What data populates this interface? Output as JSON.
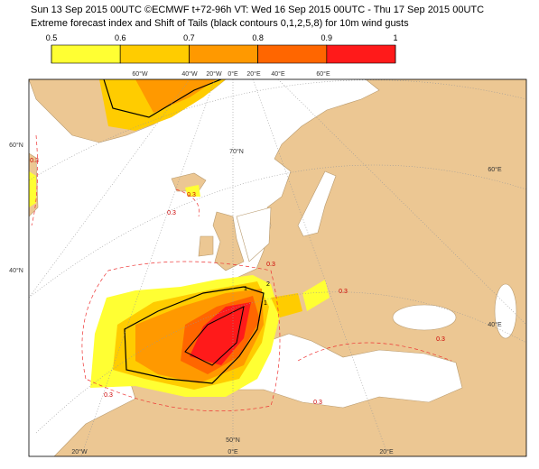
{
  "map": {
    "title_lines": [
      "Sun 13 Sep 2015 00UTC ©ECMWF t+72-96h  VT: Wed 16 Sep 2015 00UTC - Thu 17 Sep 2015 00UTC",
      "Extreme forecast index and Shift of Tails (black contours 0,1,2,5,8) for 10m wind gusts"
    ],
    "colorbar": {
      "ticks": [
        0.5,
        0.6,
        0.7,
        0.8,
        0.9,
        1
      ],
      "colors": [
        "#ffff33",
        "#ffcc00",
        "#ff9900",
        "#ff6600",
        "#ff1a1a"
      ]
    },
    "grid_labels": [
      "60°W",
      "40°W",
      "20°W",
      "0°E",
      "20°E",
      "40°E",
      "60°E",
      "60°N",
      "40°N",
      "60°E",
      "40°E",
      "70°N",
      "50°N",
      "20°W",
      "0°E",
      "20°E"
    ],
    "contour_labels": [
      "0.3",
      "0.3",
      "0.3",
      "0.3",
      "0.3",
      "0.3",
      "0.3",
      "0.3",
      "1",
      "2",
      "1"
    ]
  }
}
